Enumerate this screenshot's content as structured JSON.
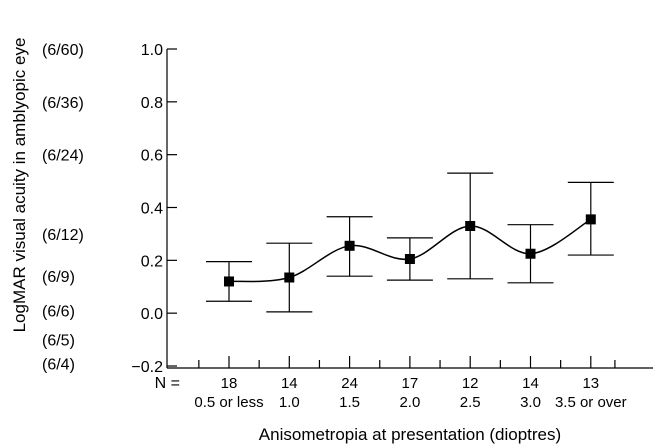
{
  "chart_data": {
    "type": "line",
    "ylabel": "LogMAR visual acuity in amblyopic eye",
    "xlabel": "Anisometropia at presentation (dioptres)",
    "ylim": [
      -0.2,
      1.0
    ],
    "yticks": [
      "1.0",
      "0.8",
      "0.6",
      "0.4",
      "0.2",
      "0.0",
      "−0.2"
    ],
    "ytick_values": [
      1.0,
      0.8,
      0.6,
      0.4,
      0.2,
      0.0,
      -0.2
    ],
    "snellen_labels": [
      {
        "label": "(6/60)",
        "value": 1.0
      },
      {
        "label": "(6/36)",
        "value": 0.8
      },
      {
        "label": "(6/24)",
        "value": 0.6
      },
      {
        "label": "(6/12)",
        "value": 0.3
      },
      {
        "label": "(6/9)",
        "value": 0.14
      },
      {
        "label": "(6/6)",
        "value": 0.01
      },
      {
        "label": "(6/5)",
        "value": -0.1
      },
      {
        "label": "(6/4)",
        "value": -0.19
      }
    ],
    "n_label": "N =",
    "categories": [
      "0.5 or less",
      "1.0",
      "1.5",
      "2.0",
      "2.5",
      "3.0",
      "3.5 or over"
    ],
    "n_values": [
      "18",
      "14",
      "24",
      "17",
      "12",
      "14",
      "13"
    ],
    "series": [
      {
        "values": [
          0.12,
          0.135,
          0.255,
          0.205,
          0.33,
          0.225,
          0.355
        ],
        "upper": [
          0.195,
          0.265,
          0.365,
          0.285,
          0.53,
          0.335,
          0.495
        ],
        "lower": [
          0.045,
          0.005,
          0.14,
          0.125,
          0.13,
          0.115,
          0.22
        ]
      }
    ],
    "grid": false
  }
}
